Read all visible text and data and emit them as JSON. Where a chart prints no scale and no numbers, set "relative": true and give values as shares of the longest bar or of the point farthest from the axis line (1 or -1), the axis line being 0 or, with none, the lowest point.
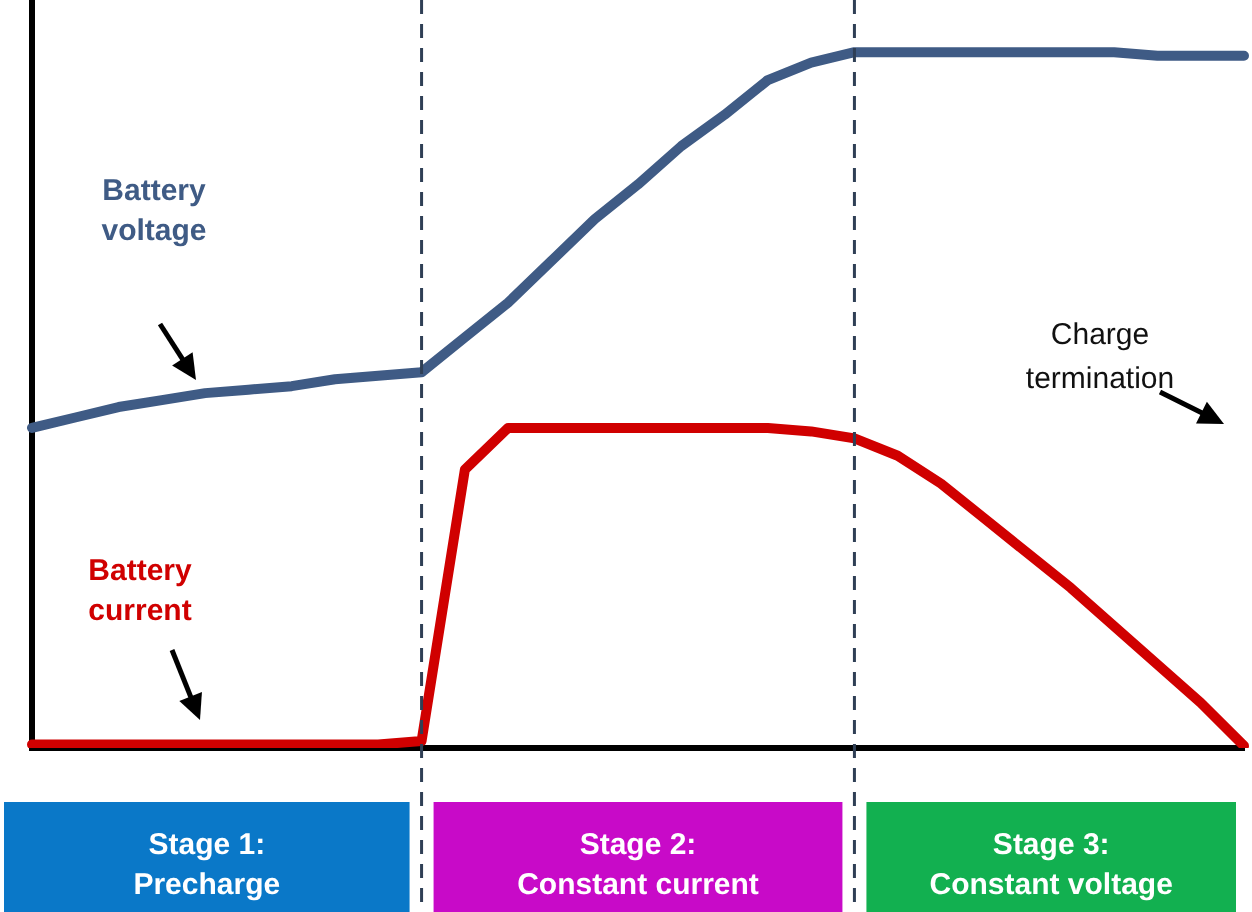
{
  "chart_data": {
    "type": "line",
    "relative": true,
    "legend": false,
    "marker": "none",
    "categories": [
      null,
      null,
      null,
      null,
      null,
      null,
      null,
      null,
      null,
      null,
      null,
      null,
      null,
      null,
      null,
      null,
      null,
      null,
      null,
      null,
      null,
      null,
      null,
      null,
      null,
      null,
      null,
      null,
      null
    ],
    "series": [
      {
        "name": "Battery voltage",
        "color": "#3f5b85",
        "values": [
          0.46,
          0.475,
          0.49,
          0.5,
          0.51,
          0.515,
          0.52,
          0.53,
          0.535,
          0.54,
          0.59,
          0.64,
          0.7,
          0.76,
          0.81,
          0.865,
          0.91,
          0.96,
          0.985,
          1,
          1,
          1,
          1,
          1,
          1,
          1,
          0.995,
          0.995,
          0.995
        ]
      },
      {
        "name": "Battery current",
        "color": "#d00000",
        "values": [
          0.005,
          0.005,
          0.005,
          0.005,
          0.005,
          0.005,
          0.005,
          0.005,
          0.005,
          0.01,
          0.4,
          0.46,
          0.46,
          0.46,
          0.46,
          0.46,
          0.46,
          0.46,
          0.455,
          0.445,
          0.42,
          0.38,
          0.33,
          0.28,
          0.23,
          0.175,
          0.12,
          0.065,
          0.003
        ]
      }
    ],
    "annotations": [
      "Charge\ntermination",
      "Stage 1:\nPrecharge",
      "Stage 2:\nConstant current",
      "Stage 3:\nConstant voltage"
    ]
  }
}
